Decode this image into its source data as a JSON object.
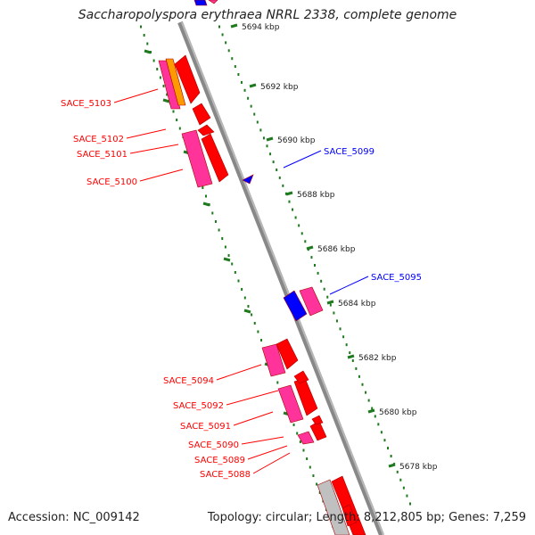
{
  "title": "Saccharopolyspora erythraea NRRL 2338, complete genome",
  "footer": {
    "accession": "Accession: NC_009142",
    "stats": "Topology: circular; Length: 8,212,805 bp; Genes: 7,259"
  },
  "ticks": [
    "5694 kbp",
    "5692 kbp",
    "5690 kbp",
    "5688 kbp",
    "5686 kbp",
    "5684 kbp",
    "5682 kbp",
    "5680 kbp",
    "5678 kbp"
  ],
  "labels_left": [
    "SACE_5103",
    "SACE_5102",
    "SACE_5101",
    "SACE_5100",
    "SACE_5094",
    "SACE_5092",
    "SACE_5091",
    "SACE_5090",
    "SACE_5089",
    "SACE_5088"
  ],
  "labels_right": [
    "SACE_5099",
    "SACE_5095"
  ],
  "colors": {
    "forward_red": "#ff0000",
    "forward_pink": "#ff3399",
    "orange": "#ff9900",
    "reverse_blue": "#0000ff",
    "backbone": "#888888",
    "ticks": "#1f7a1f",
    "grey_gene": "#c0c0c0"
  }
}
